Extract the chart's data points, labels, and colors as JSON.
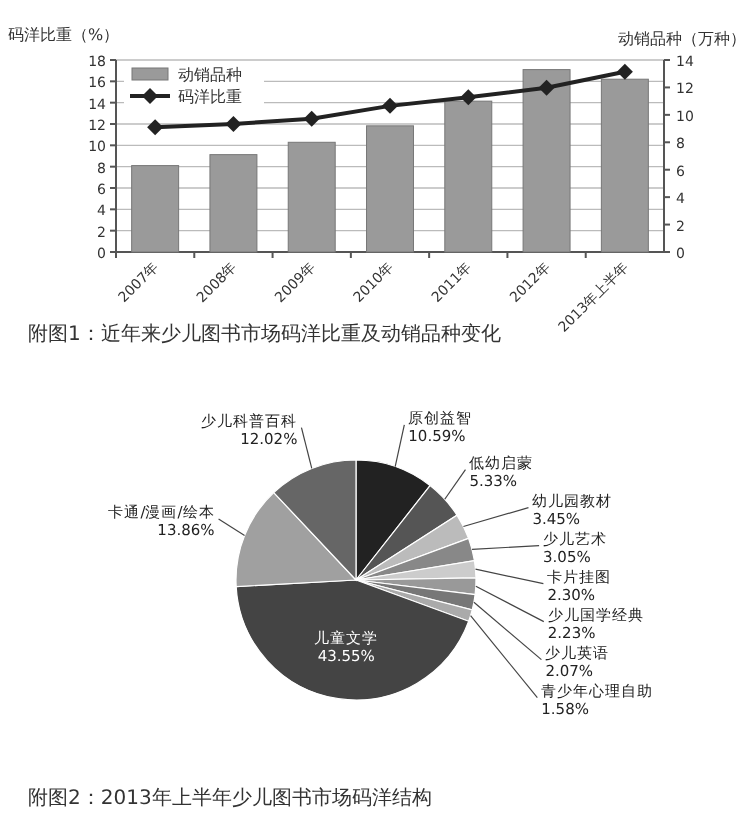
{
  "chart_data": [
    {
      "type": "bar",
      "title": "附图1：近年来少儿图书市场码洋比重及动销品种变化",
      "categories": [
        "2007年",
        "2008年",
        "2009年",
        "2010年",
        "2011年",
        "2012年",
        "2013年上半年"
      ],
      "ylabel": "码洋比重（%）",
      "y2label": "动销品种（万种）",
      "ylim": [
        0,
        18
      ],
      "yticks": [
        0,
        2,
        4,
        6,
        8,
        10,
        12,
        14,
        16,
        18
      ],
      "y2lim": [
        0,
        14
      ],
      "y2ticks": [
        0,
        2,
        4,
        6,
        8,
        10,
        12,
        14
      ],
      "grid": "y",
      "legend": "top left",
      "marker": "diamond",
      "series": [
        {
          "name": "动销品种",
          "type": "bar",
          "axis": "y2",
          "color": "#9a9a9a",
          "values": [
            6.3,
            7.1,
            8.0,
            9.2,
            11.0,
            13.3,
            12.6
          ]
        },
        {
          "name": "码洋比重",
          "type": "line",
          "color": "#222222",
          "values": [
            11.7,
            12.0,
            12.5,
            13.7,
            14.5,
            15.4,
            16.9
          ]
        }
      ]
    },
    {
      "type": "pie",
      "title": "附图2：2013年上半年少儿图书市场码洋结构",
      "categories": [
        "原创益智",
        "低幼启蒙",
        "幼儿园教材",
        "少儿艺术",
        "卡片挂图",
        "少儿国学经典",
        "少儿英语",
        "青少年心理自助",
        "儿童文学",
        "卡通/漫画/绘本",
        "少儿科普百科"
      ],
      "values": [
        10.59,
        5.33,
        3.45,
        3.05,
        2.3,
        2.23,
        2.07,
        1.58,
        43.55,
        13.86,
        12.02
      ],
      "value_labels": [
        "10.59%",
        "5.33%",
        "3.45%",
        "3.05%",
        "2.30%",
        "2.23%",
        "2.07%",
        "1.58%",
        "43.55%",
        "13.86%",
        "12.02%"
      ],
      "colors": [
        "#222222",
        "#555555",
        "#bbbbbb",
        "#888888",
        "#cccccc",
        "#999999",
        "#777777",
        "#aaaaaa",
        "#444444",
        "#a0a0a0",
        "#666666"
      ]
    }
  ]
}
